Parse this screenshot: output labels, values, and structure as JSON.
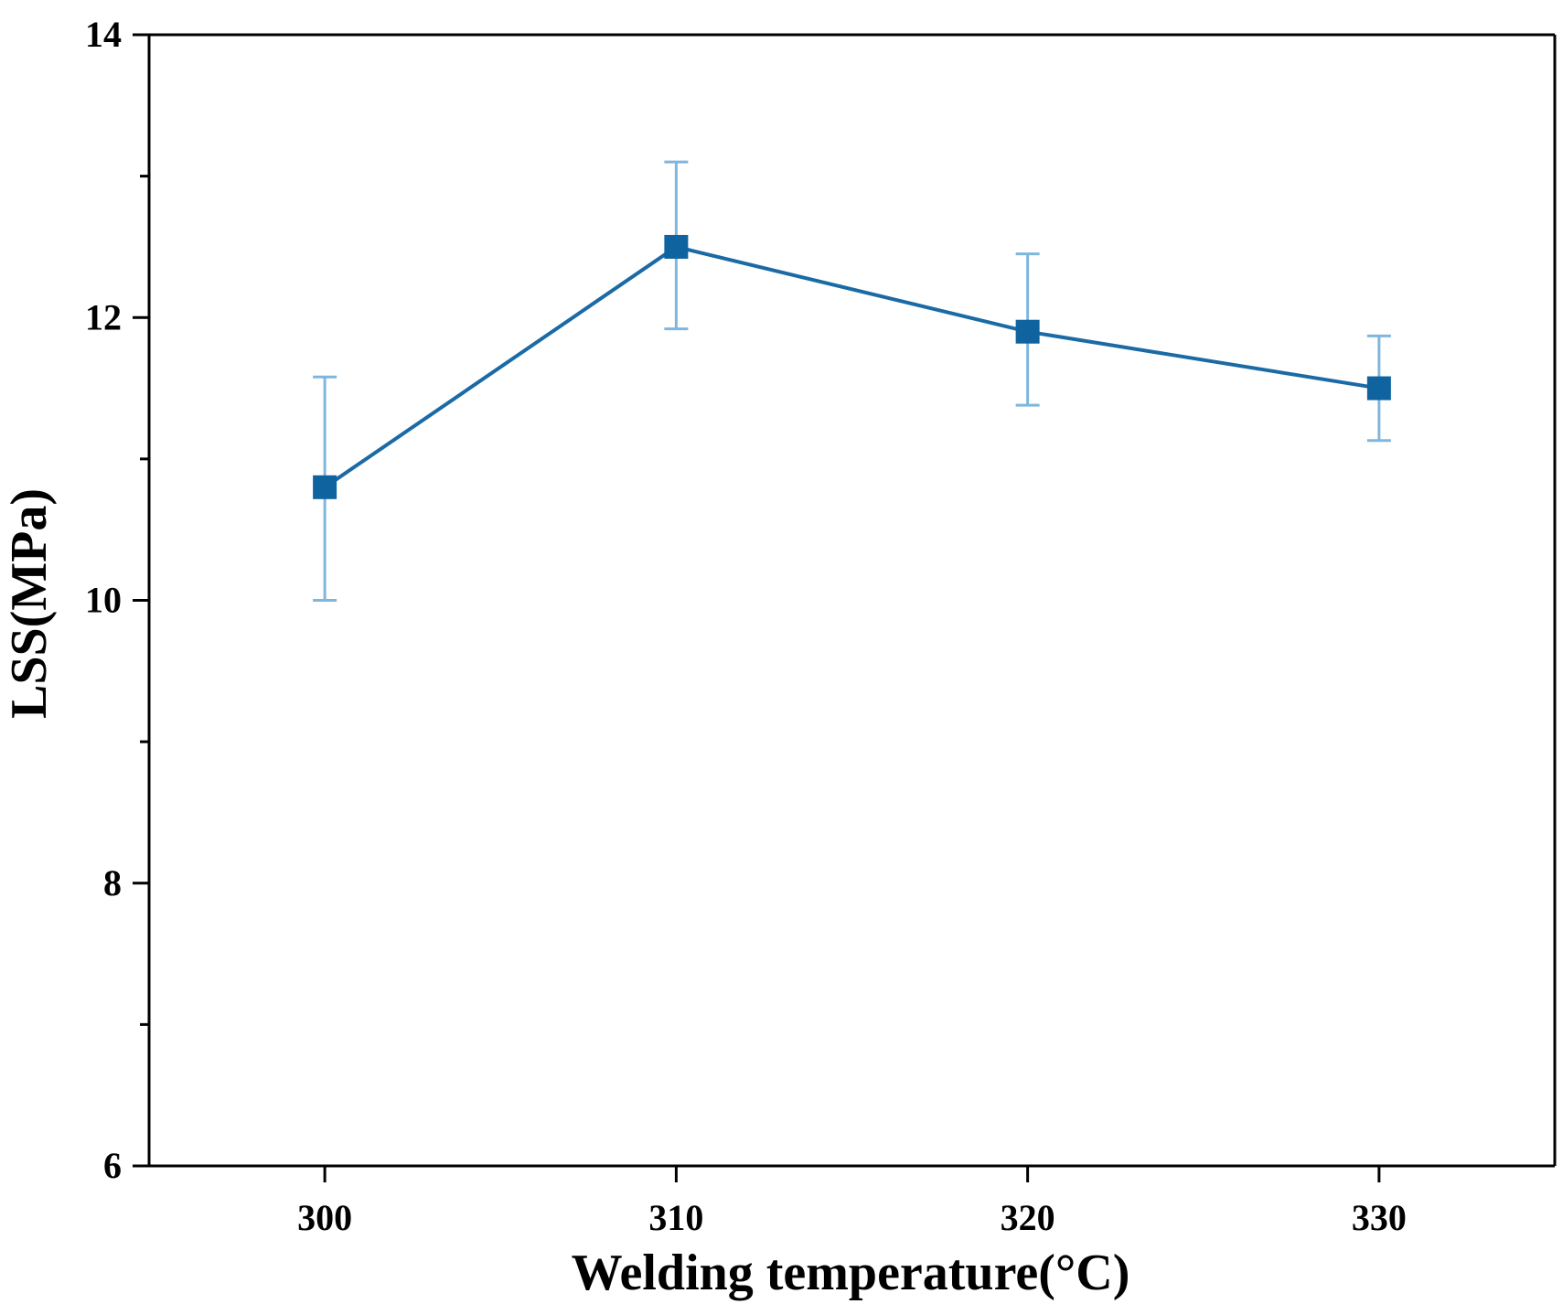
{
  "chart_data": {
    "type": "line",
    "title": "",
    "xlabel": "Welding temperature(°C)",
    "ylabel": "LSS(MPa)",
    "x": [
      300,
      310,
      320,
      330
    ],
    "xticks": [
      "300",
      "310",
      "320",
      "330"
    ],
    "xlim": [
      295,
      335
    ],
    "ylim": [
      6,
      14
    ],
    "yticks": [
      "6",
      "8",
      "10",
      "12",
      "14"
    ],
    "yminor": [
      7,
      9,
      11,
      13
    ],
    "grid": false,
    "legend": "none",
    "series": [
      {
        "name": "LSS",
        "values": [
          10.8,
          12.5,
          11.9,
          11.5
        ],
        "err_low": [
          10.0,
          11.92,
          11.38,
          11.13
        ],
        "err_high": [
          11.58,
          13.1,
          12.45,
          11.87
        ],
        "line_color": "#1a6aa6",
        "marker_color": "#0f64a0",
        "errorbar_color": "#7fb6dd"
      }
    ]
  }
}
